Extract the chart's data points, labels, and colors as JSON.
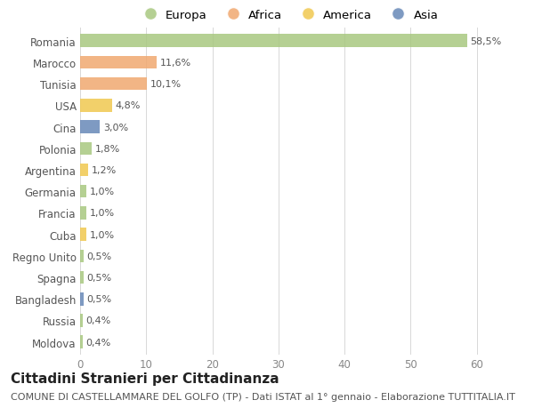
{
  "countries": [
    "Romania",
    "Marocco",
    "Tunisia",
    "USA",
    "Cina",
    "Polonia",
    "Argentina",
    "Germania",
    "Francia",
    "Cuba",
    "Regno Unito",
    "Spagna",
    "Bangladesh",
    "Russia",
    "Moldova"
  ],
  "values": [
    58.5,
    11.6,
    10.1,
    4.8,
    3.0,
    1.8,
    1.2,
    1.0,
    1.0,
    1.0,
    0.5,
    0.5,
    0.5,
    0.4,
    0.4
  ],
  "labels": [
    "58,5%",
    "11,6%",
    "10,1%",
    "4,8%",
    "3,0%",
    "1,8%",
    "1,2%",
    "1,0%",
    "1,0%",
    "1,0%",
    "0,5%",
    "0,5%",
    "0,5%",
    "0,4%",
    "0,4%"
  ],
  "colors": [
    "#a8c880",
    "#f0a870",
    "#f0a870",
    "#f0c850",
    "#6888b8",
    "#a8c880",
    "#f0c850",
    "#a8c880",
    "#a8c880",
    "#f0c850",
    "#a8c880",
    "#a8c880",
    "#6888b8",
    "#a8c880",
    "#a8c880"
  ],
  "legend_labels": [
    "Europa",
    "Africa",
    "America",
    "Asia"
  ],
  "legend_colors": [
    "#a8c880",
    "#f0a870",
    "#f0c850",
    "#6888b8"
  ],
  "title": "Cittadini Stranieri per Cittadinanza",
  "subtitle": "COMUNE DI CASTELLAMMARE DEL GOLFO (TP) - Dati ISTAT al 1° gennaio - Elaborazione TUTTITALIA.IT",
  "xlim": [
    0,
    63
  ],
  "xticks": [
    0,
    10,
    20,
    30,
    40,
    50,
    60
  ],
  "background_color": "#ffffff",
  "bar_height": 0.6,
  "title_fontsize": 11,
  "subtitle_fontsize": 8,
  "label_fontsize": 8,
  "tick_fontsize": 8.5,
  "legend_fontsize": 9.5,
  "grid_color": "#d8d8d8"
}
